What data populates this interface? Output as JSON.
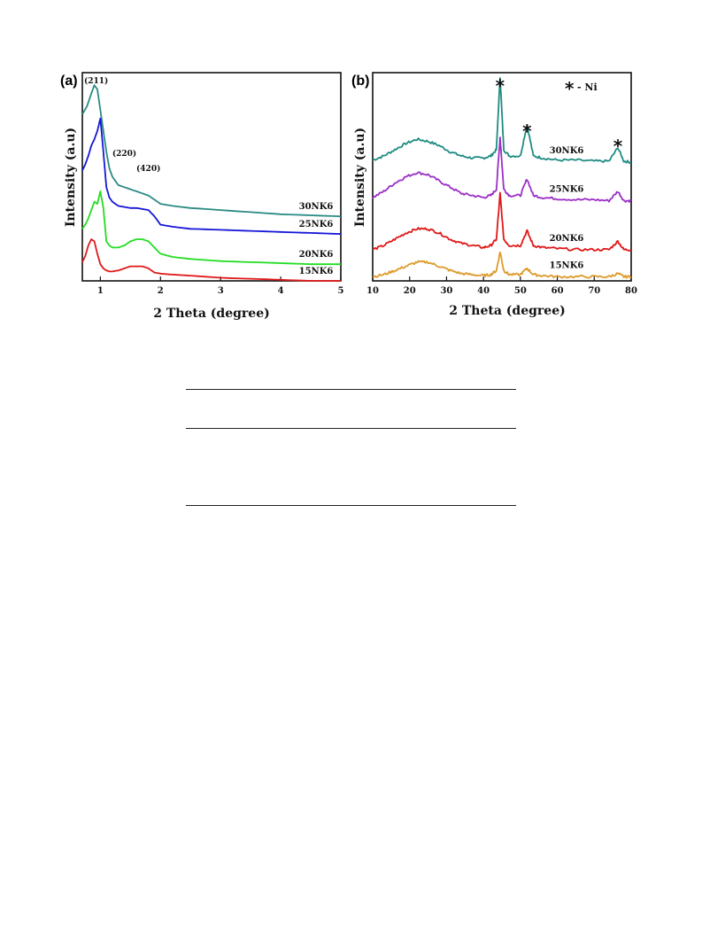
{
  "chart_data": [
    {
      "type": "line",
      "panel": "(a)",
      "title": "",
      "xlabel": "2 Theta (degree)",
      "ylabel": "Intensity (a.u)",
      "xlim": [
        0.7,
        5
      ],
      "xticks": [
        1,
        2,
        3,
        4,
        5
      ],
      "grid": false,
      "peak_labels": [
        {
          "text": "(211)",
          "x": 0.93
        },
        {
          "text": "(220)",
          "x": 1.4
        },
        {
          "text": "(420)",
          "x": 1.8
        }
      ],
      "series": [
        {
          "name": "30NK6",
          "color": "#2a8a84",
          "x": [
            0.7,
            0.78,
            0.85,
            0.9,
            0.95,
            1.0,
            1.05,
            1.1,
            1.15,
            1.2,
            1.3,
            1.4,
            1.5,
            1.6,
            1.7,
            1.8,
            1.9,
            2.0,
            2.2,
            2.5,
            3.0,
            3.5,
            4.0,
            4.5,
            5.0
          ],
          "y": [
            0.8,
            0.84,
            0.9,
            0.94,
            0.92,
            0.82,
            0.72,
            0.62,
            0.54,
            0.5,
            0.46,
            0.45,
            0.44,
            0.43,
            0.42,
            0.41,
            0.39,
            0.37,
            0.36,
            0.35,
            0.34,
            0.33,
            0.32,
            0.315,
            0.31
          ]
        },
        {
          "name": "25NK6",
          "color": "#1515d8",
          "x": [
            0.7,
            0.75,
            0.8,
            0.85,
            0.9,
            0.95,
            1.0,
            1.05,
            1.1,
            1.15,
            1.2,
            1.3,
            1.4,
            1.5,
            1.6,
            1.7,
            1.8,
            1.9,
            2.0,
            2.2,
            2.5,
            3.0,
            3.5,
            4.0,
            4.5,
            5.0
          ],
          "y": [
            0.53,
            0.56,
            0.6,
            0.65,
            0.68,
            0.72,
            0.78,
            0.62,
            0.45,
            0.4,
            0.38,
            0.36,
            0.355,
            0.35,
            0.35,
            0.345,
            0.34,
            0.31,
            0.27,
            0.26,
            0.25,
            0.245,
            0.24,
            0.235,
            0.23,
            0.225
          ]
        },
        {
          "name": "20NK6",
          "color": "#22dd22",
          "x": [
            0.7,
            0.75,
            0.8,
            0.85,
            0.9,
            0.95,
            1.0,
            1.05,
            1.1,
            1.15,
            1.2,
            1.3,
            1.4,
            1.5,
            1.6,
            1.7,
            1.8,
            1.9,
            2.0,
            2.2,
            2.5,
            3.0,
            3.5,
            4.0,
            4.5,
            5.0
          ],
          "y": [
            0.25,
            0.27,
            0.3,
            0.34,
            0.38,
            0.37,
            0.43,
            0.35,
            0.19,
            0.17,
            0.16,
            0.16,
            0.17,
            0.19,
            0.2,
            0.2,
            0.19,
            0.16,
            0.13,
            0.115,
            0.105,
            0.095,
            0.09,
            0.085,
            0.08,
            0.08
          ]
        },
        {
          "name": "15NK6",
          "color": "#e01818",
          "x": [
            0.7,
            0.75,
            0.8,
            0.85,
            0.9,
            0.95,
            1.0,
            1.05,
            1.1,
            1.15,
            1.2,
            1.3,
            1.4,
            1.5,
            1.6,
            1.7,
            1.8,
            1.9,
            2.0,
            2.2,
            2.5,
            3.0,
            3.5,
            4.0,
            4.5,
            5.0
          ],
          "y": [
            0.09,
            0.12,
            0.17,
            0.2,
            0.19,
            0.13,
            0.08,
            0.06,
            0.05,
            0.045,
            0.045,
            0.05,
            0.06,
            0.07,
            0.07,
            0.07,
            0.06,
            0.04,
            0.035,
            0.03,
            0.025,
            0.015,
            0.01,
            0.005,
            0.0,
            0.0
          ]
        }
      ]
    },
    {
      "type": "line",
      "panel": "(b)",
      "title": "",
      "xlabel": "2 Theta (degree)",
      "ylabel": "Intensity (a.u)",
      "xlim": [
        10,
        80
      ],
      "xticks": [
        10,
        20,
        30,
        40,
        50,
        60,
        70,
        80
      ],
      "grid": false,
      "legend_symbol": "*",
      "legend_text": "- Ni",
      "ni_peaks": [
        44.5,
        51.8,
        76.4
      ],
      "series": [
        {
          "name": "30NK6",
          "color": "#1e8c82",
          "baseline": 0.58,
          "hump": 0.09,
          "x": [
            10,
            13,
            16,
            19,
            22,
            25,
            28,
            31,
            34,
            37,
            40,
            42,
            43.5,
            44.5,
            45.5,
            47,
            50,
            51.8,
            53.5,
            56,
            60,
            65,
            70,
            74,
            76.4,
            78,
            80
          ],
          "y": [
            0.58,
            0.6,
            0.63,
            0.66,
            0.68,
            0.67,
            0.65,
            0.62,
            0.6,
            0.59,
            0.59,
            0.6,
            0.63,
            0.98,
            0.63,
            0.6,
            0.6,
            0.75,
            0.6,
            0.59,
            0.58,
            0.58,
            0.575,
            0.575,
            0.64,
            0.575,
            0.57
          ]
        },
        {
          "name": "25NK6",
          "color": "#9b2fc6",
          "x": [
            10,
            13,
            16,
            19,
            22,
            25,
            28,
            31,
            34,
            37,
            40,
            42,
            43.5,
            44.5,
            45.5,
            47,
            50,
            51.8,
            53.5,
            56,
            60,
            65,
            70,
            74,
            76.4,
            78,
            80
          ],
          "y": [
            0.4,
            0.43,
            0.47,
            0.5,
            0.52,
            0.51,
            0.48,
            0.45,
            0.42,
            0.41,
            0.4,
            0.41,
            0.44,
            0.69,
            0.44,
            0.41,
            0.41,
            0.49,
            0.41,
            0.4,
            0.395,
            0.39,
            0.39,
            0.385,
            0.43,
            0.385,
            0.385
          ]
        },
        {
          "name": "20NK6",
          "color": "#e01818",
          "x": [
            10,
            13,
            16,
            19,
            22,
            25,
            28,
            31,
            34,
            37,
            40,
            42,
            43.5,
            44.5,
            45.5,
            47,
            50,
            51.8,
            53.5,
            56,
            60,
            65,
            70,
            74,
            76.4,
            78,
            80
          ],
          "y": [
            0.15,
            0.17,
            0.2,
            0.23,
            0.25,
            0.25,
            0.23,
            0.2,
            0.18,
            0.17,
            0.16,
            0.17,
            0.2,
            0.42,
            0.2,
            0.17,
            0.17,
            0.24,
            0.17,
            0.16,
            0.155,
            0.15,
            0.15,
            0.15,
            0.19,
            0.15,
            0.15
          ]
        },
        {
          "name": "15NK6",
          "color": "#dd9a2a",
          "x": [
            10,
            13,
            16,
            19,
            22,
            25,
            28,
            31,
            34,
            37,
            40,
            42,
            43.5,
            44.5,
            45.5,
            47,
            50,
            51.8,
            53.5,
            56,
            60,
            65,
            70,
            74,
            76.4,
            78,
            80
          ],
          "y": [
            0.02,
            0.03,
            0.05,
            0.07,
            0.09,
            0.09,
            0.07,
            0.05,
            0.035,
            0.03,
            0.025,
            0.03,
            0.05,
            0.14,
            0.05,
            0.03,
            0.03,
            0.06,
            0.03,
            0.025,
            0.02,
            0.02,
            0.02,
            0.02,
            0.035,
            0.02,
            0.02
          ]
        }
      ]
    }
  ]
}
